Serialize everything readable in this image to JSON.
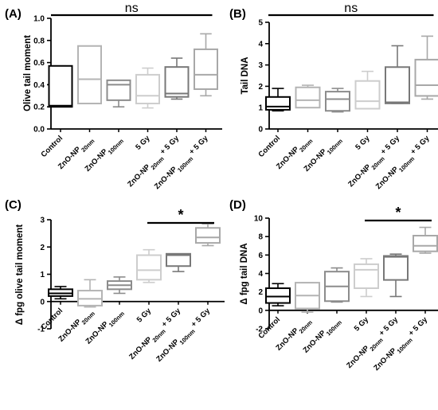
{
  "chart_data": [
    {
      "type": "box",
      "panel": "(A)",
      "ylabel": "Olive tail moment",
      "ylim": [
        0,
        1.0
      ],
      "yticks": [
        "0.0",
        "0.2",
        "0.4",
        "0.6",
        "0.8",
        "1.0"
      ],
      "categories": [
        {
          "main": "Control",
          "sub": "",
          "tail": ""
        },
        {
          "main": "ZnO-NP",
          "sub": "20nm",
          "tail": ""
        },
        {
          "main": "ZnO-NP",
          "sub": "100nm",
          "tail": ""
        },
        {
          "main": "5 Gy",
          "sub": "",
          "tail": ""
        },
        {
          "main": "ZnO-NP",
          "sub": "20nm",
          "tail": " + 5 Gy"
        },
        {
          "main": "ZnO-NP",
          "sub": "100nm",
          "tail": " + 5 Gy"
        }
      ],
      "boxes": [
        {
          "min": 0.2,
          "q1": 0.2,
          "median": 0.21,
          "q3": 0.57,
          "max": 0.57
        },
        {
          "min": 0.23,
          "q1": 0.23,
          "median": 0.45,
          "q3": 0.75,
          "max": 0.75
        },
        {
          "min": 0.2,
          "q1": 0.26,
          "median": 0.4,
          "q3": 0.44,
          "max": 0.44
        },
        {
          "min": 0.19,
          "q1": 0.23,
          "median": 0.3,
          "q3": 0.49,
          "max": 0.55
        },
        {
          "min": 0.27,
          "q1": 0.29,
          "median": 0.32,
          "q3": 0.56,
          "max": 0.64
        },
        {
          "min": 0.3,
          "q1": 0.36,
          "median": 0.49,
          "q3": 0.72,
          "max": 0.86
        }
      ],
      "colors": [
        "#000000",
        "#b4b4b4",
        "#8c8c8c",
        "#cdcdcd",
        "#787878",
        "#a8a8a8"
      ],
      "significance": {
        "label": "ns",
        "from": 0,
        "to": 5
      }
    },
    {
      "type": "box",
      "panel": "(B)",
      "ylabel": "Tail DNA",
      "ylim": [
        0,
        5
      ],
      "yticks": [
        "0",
        "1",
        "2",
        "3",
        "4",
        "5"
      ],
      "categories": [
        {
          "main": "Control",
          "sub": "",
          "tail": ""
        },
        {
          "main": "ZnO-NP",
          "sub": "20nm",
          "tail": ""
        },
        {
          "main": "ZnO-NP",
          "sub": "100nm",
          "tail": ""
        },
        {
          "main": "5 Gy",
          "sub": "",
          "tail": ""
        },
        {
          "main": "ZnO-NP",
          "sub": "20nm",
          "tail": " + 5 Gy"
        },
        {
          "main": "ZnO-NP",
          "sub": "100nm",
          "tail": " + 5 Gy"
        }
      ],
      "boxes": [
        {
          "min": 0.85,
          "q1": 0.9,
          "median": 1.05,
          "q3": 1.5,
          "max": 1.9
        },
        {
          "min": 1.0,
          "q1": 1.0,
          "median": 1.35,
          "q3": 1.95,
          "max": 2.05
        },
        {
          "min": 0.8,
          "q1": 0.85,
          "median": 1.4,
          "q3": 1.75,
          "max": 1.9
        },
        {
          "min": 0.95,
          "q1": 0.95,
          "median": 1.3,
          "q3": 2.25,
          "max": 2.7
        },
        {
          "min": 1.2,
          "q1": 1.2,
          "median": 1.25,
          "q3": 2.9,
          "max": 3.9
        },
        {
          "min": 1.4,
          "q1": 1.55,
          "median": 2.05,
          "q3": 3.25,
          "max": 4.35
        }
      ],
      "colors": [
        "#000000",
        "#b4b4b4",
        "#8c8c8c",
        "#cdcdcd",
        "#787878",
        "#a8a8a8"
      ],
      "significance": {
        "label": "ns",
        "from": 0,
        "to": 5
      }
    },
    {
      "type": "box",
      "panel": "(C)",
      "ylabel": "Δ fpg olive tail moment",
      "ylim": [
        -1,
        3
      ],
      "yticks": [
        "-1",
        "0",
        "1",
        "2",
        "3"
      ],
      "categories": [
        {
          "main": "Control",
          "sub": "",
          "tail": ""
        },
        {
          "main": "ZnO-NP",
          "sub": "20nm",
          "tail": ""
        },
        {
          "main": "ZnO-NP",
          "sub": "100nm",
          "tail": ""
        },
        {
          "main": "5 Gy",
          "sub": "",
          "tail": ""
        },
        {
          "main": "ZnO-NP",
          "sub": "20nm",
          "tail": " + 5 Gy"
        },
        {
          "main": "ZnO-NP",
          "sub": "100nm",
          "tail": " + 5 Gy"
        }
      ],
      "boxes": [
        {
          "min": 0.1,
          "q1": 0.2,
          "median": 0.3,
          "q3": 0.45,
          "max": 0.55
        },
        {
          "min": -0.2,
          "q1": -0.15,
          "median": 0.1,
          "q3": 0.4,
          "max": 0.8
        },
        {
          "min": 0.3,
          "q1": 0.45,
          "median": 0.6,
          "q3": 0.75,
          "max": 0.9
        },
        {
          "min": 0.7,
          "q1": 0.8,
          "median": 1.15,
          "q3": 1.7,
          "max": 1.9
        },
        {
          "min": 1.1,
          "q1": 1.3,
          "median": 1.7,
          "q3": 1.75,
          "max": 1.75
        },
        {
          "min": 2.05,
          "q1": 2.15,
          "median": 2.35,
          "q3": 2.7,
          "max": 2.85
        }
      ],
      "colors": [
        "#000000",
        "#b4b4b4",
        "#8c8c8c",
        "#cdcdcd",
        "#787878",
        "#a8a8a8"
      ],
      "significance": {
        "label": "*",
        "from": 3,
        "to": 5
      }
    },
    {
      "type": "box",
      "panel": "(D)",
      "ylabel": "Δ fpg tail DNA",
      "ylim": [
        -2,
        10
      ],
      "yticks": [
        "-2",
        "0",
        "2",
        "4",
        "6",
        "8",
        "10"
      ],
      "categories": [
        {
          "main": "Control",
          "sub": "",
          "tail": ""
        },
        {
          "main": "ZnO-NP",
          "sub": "20nm",
          "tail": ""
        },
        {
          "main": "ZnO-NP",
          "sub": "100nm",
          "tail": ""
        },
        {
          "main": "5 Gy",
          "sub": "",
          "tail": ""
        },
        {
          "main": "ZnO-NP",
          "sub": "20nm",
          "tail": " + 5 Gy"
        },
        {
          "main": "ZnO-NP",
          "sub": "100nm",
          "tail": " + 5 Gy"
        }
      ],
      "boxes": [
        {
          "min": 0.5,
          "q1": 0.8,
          "median": 1.5,
          "q3": 2.4,
          "max": 2.9
        },
        {
          "min": -0.2,
          "q1": 0.2,
          "median": 1.6,
          "q3": 3.0,
          "max": 3.0
        },
        {
          "min": 0.9,
          "q1": 1.0,
          "median": 2.6,
          "q3": 4.2,
          "max": 4.6
        },
        {
          "min": 1.5,
          "q1": 2.4,
          "median": 4.4,
          "q3": 5.0,
          "max": 5.6
        },
        {
          "min": 1.5,
          "q1": 3.3,
          "median": 5.8,
          "q3": 5.9,
          "max": 6.1
        },
        {
          "min": 6.2,
          "q1": 6.4,
          "median": 7.0,
          "q3": 8.1,
          "max": 9.0
        }
      ],
      "colors": [
        "#000000",
        "#b4b4b4",
        "#8c8c8c",
        "#cdcdcd",
        "#787878",
        "#a8a8a8"
      ],
      "significance": {
        "label": "*",
        "from": 3,
        "to": 5
      }
    }
  ]
}
